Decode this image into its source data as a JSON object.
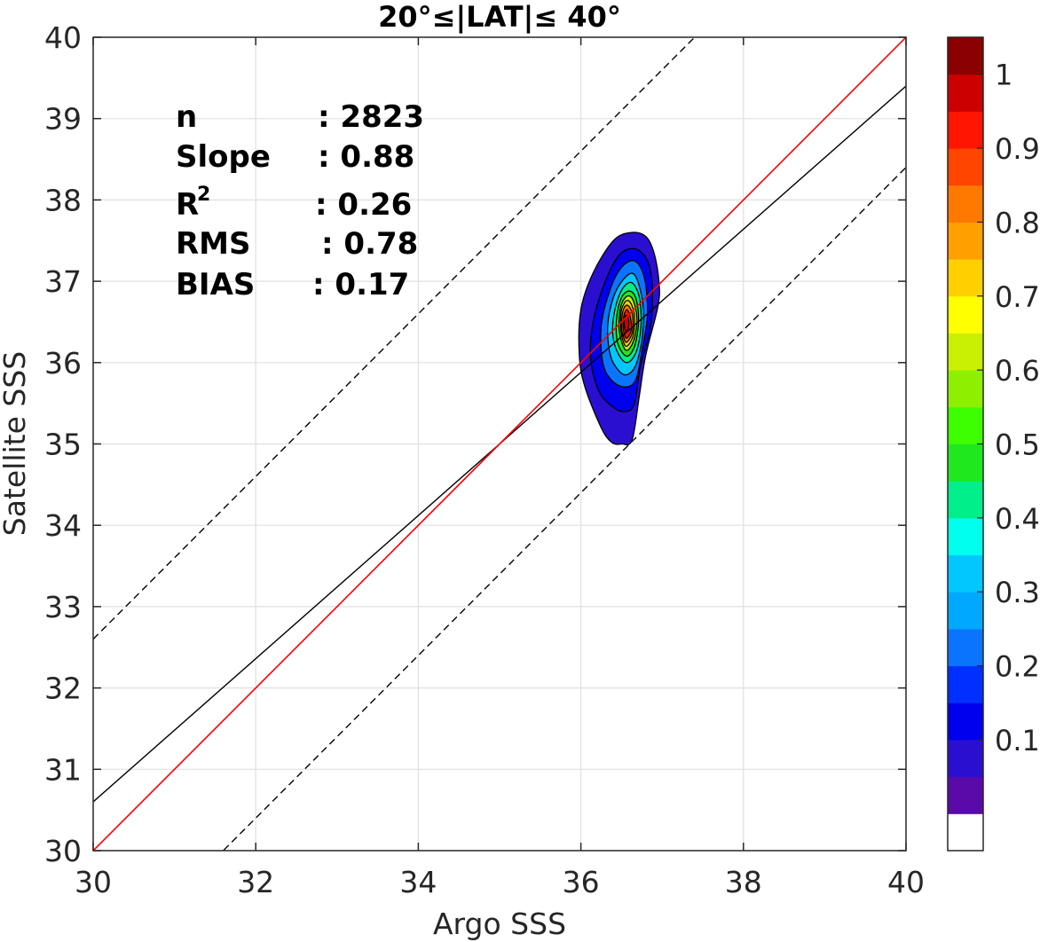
{
  "chart_data": {
    "type": "contour",
    "title": "20°≤|LAT|≤ 40°",
    "xlabel": "Argo SSS",
    "ylabel": "Satellite SSS",
    "xlim": [
      30,
      40
    ],
    "ylim": [
      30,
      40
    ],
    "xticks": [
      "30",
      "32",
      "34",
      "36",
      "38",
      "40"
    ],
    "yticks": [
      "30",
      "31",
      "32",
      "33",
      "34",
      "35",
      "36",
      "37",
      "38",
      "39",
      "40"
    ],
    "grid": true,
    "stats": [
      {
        "label": "n",
        "value": ": 2823"
      },
      {
        "label": "Slope",
        "value": ": 0.88"
      },
      {
        "label": "R",
        "sup": "2",
        "value": ": 0.26"
      },
      {
        "label": "RMS",
        "value": ": 0.78"
      },
      {
        "label": "BIAS",
        "value": ": 0.17"
      }
    ],
    "lines": {
      "one_to_one": {
        "slope": 1,
        "intercept": 0,
        "color": "#ff0000"
      },
      "regression": {
        "slope": 0.88,
        "x0": 30,
        "y0": 30.6,
        "color": "#000000"
      },
      "upper_bound": {
        "slope": 1,
        "intercept": 2.6,
        "color": "#000000",
        "dashed": true
      },
      "lower_bound": {
        "slope": 1,
        "intercept": -1.6,
        "color": "#000000",
        "dashed": true
      }
    },
    "contour_center": {
      "x": 36.55,
      "y": 36.5
    },
    "contours": [
      {
        "level": 0.05,
        "color": "#2b0fd0",
        "points": [
          [
            36.5,
            35.0
          ],
          [
            36.63,
            35.05
          ],
          [
            36.72,
            35.6
          ],
          [
            36.8,
            36.1
          ],
          [
            36.95,
            36.7
          ],
          [
            36.96,
            37.0
          ],
          [
            36.9,
            37.35
          ],
          [
            36.8,
            37.55
          ],
          [
            36.62,
            37.6
          ],
          [
            36.4,
            37.5
          ],
          [
            36.15,
            37.1
          ],
          [
            36.0,
            36.65
          ],
          [
            35.98,
            36.1
          ],
          [
            36.05,
            35.7
          ],
          [
            36.25,
            35.2
          ],
          [
            36.38,
            35.02
          ]
        ]
      },
      {
        "level": 0.1,
        "color": "#0000ee",
        "points": [
          [
            36.55,
            35.4
          ],
          [
            36.66,
            35.5
          ],
          [
            36.73,
            35.95
          ],
          [
            36.85,
            36.4
          ],
          [
            36.88,
            36.9
          ],
          [
            36.82,
            37.25
          ],
          [
            36.66,
            37.4
          ],
          [
            36.47,
            37.32
          ],
          [
            36.3,
            37.0
          ],
          [
            36.15,
            36.5
          ],
          [
            36.12,
            36.05
          ],
          [
            36.22,
            35.65
          ],
          [
            36.4,
            35.45
          ]
        ]
      },
      {
        "level": 0.2,
        "color": "#0b74ff",
        "points": [
          [
            36.55,
            35.7
          ],
          [
            36.68,
            35.8
          ],
          [
            36.76,
            36.2
          ],
          [
            36.82,
            36.6
          ],
          [
            36.78,
            37.05
          ],
          [
            36.66,
            37.25
          ],
          [
            36.5,
            37.17
          ],
          [
            36.36,
            36.9
          ],
          [
            36.25,
            36.45
          ],
          [
            36.27,
            36.0
          ],
          [
            36.38,
            35.78
          ]
        ]
      },
      {
        "level": 0.3,
        "color": "#00c8ff",
        "points": [
          [
            36.56,
            35.85
          ],
          [
            36.68,
            35.98
          ],
          [
            36.76,
            36.35
          ],
          [
            36.76,
            36.75
          ],
          [
            36.66,
            37.08
          ],
          [
            36.53,
            37.03
          ],
          [
            36.4,
            36.8
          ],
          [
            36.33,
            36.45
          ],
          [
            36.36,
            36.1
          ],
          [
            36.45,
            35.92
          ]
        ]
      },
      {
        "level": 0.4,
        "color": "#00ef8a",
        "points": [
          [
            36.56,
            36.0
          ],
          [
            36.68,
            36.13
          ],
          [
            36.74,
            36.45
          ],
          [
            36.72,
            36.8
          ],
          [
            36.63,
            36.98
          ],
          [
            36.52,
            36.92
          ],
          [
            36.43,
            36.7
          ],
          [
            36.39,
            36.4
          ],
          [
            36.44,
            36.15
          ]
        ]
      },
      {
        "level": 0.5,
        "color": "#1fe81f",
        "points": [
          [
            36.56,
            36.08
          ],
          [
            36.66,
            36.2
          ],
          [
            36.71,
            36.5
          ],
          [
            36.68,
            36.78
          ],
          [
            36.6,
            36.88
          ],
          [
            36.5,
            36.8
          ],
          [
            36.44,
            36.55
          ],
          [
            36.45,
            36.25
          ]
        ]
      },
      {
        "level": 0.6,
        "color": "#c8f000",
        "points": [
          [
            36.56,
            36.15
          ],
          [
            36.65,
            36.27
          ],
          [
            36.69,
            36.52
          ],
          [
            36.65,
            36.75
          ],
          [
            36.58,
            36.82
          ],
          [
            36.5,
            36.72
          ],
          [
            36.47,
            36.5
          ],
          [
            36.49,
            36.3
          ]
        ]
      },
      {
        "level": 0.7,
        "color": "#ffd000",
        "points": [
          [
            36.56,
            36.2
          ],
          [
            36.64,
            36.32
          ],
          [
            36.66,
            36.55
          ],
          [
            36.62,
            36.72
          ],
          [
            36.56,
            36.76
          ],
          [
            36.5,
            36.65
          ],
          [
            36.49,
            36.45
          ],
          [
            36.51,
            36.3
          ]
        ]
      },
      {
        "level": 0.8,
        "color": "#ff7800",
        "points": [
          [
            36.56,
            36.25
          ],
          [
            36.63,
            36.36
          ],
          [
            36.64,
            36.56
          ],
          [
            36.6,
            36.68
          ],
          [
            36.55,
            36.7
          ],
          [
            36.51,
            36.6
          ],
          [
            36.5,
            36.42
          ],
          [
            36.52,
            36.33
          ]
        ]
      },
      {
        "level": 0.9,
        "color": "#ff1500",
        "points": [
          [
            36.56,
            36.3
          ],
          [
            36.62,
            36.4
          ],
          [
            36.61,
            36.55
          ],
          [
            36.57,
            36.65
          ],
          [
            36.53,
            36.58
          ],
          [
            36.52,
            36.42
          ]
        ]
      },
      {
        "level": 0.95,
        "color": "#cc0000",
        "points": [
          [
            36.56,
            36.38
          ],
          [
            36.59,
            36.45
          ],
          [
            36.58,
            36.55
          ],
          [
            36.55,
            36.58
          ],
          [
            36.53,
            36.5
          ],
          [
            36.54,
            36.42
          ]
        ]
      }
    ],
    "colorbar": {
      "ticks": [
        "0.1",
        "0.2",
        "0.3",
        "0.4",
        "0.5",
        "0.6",
        "0.7",
        "0.8",
        "0.9",
        "1"
      ],
      "colors": [
        "#ffffff",
        "#5a0aa8",
        "#2b0fd0",
        "#0000ee",
        "#0030ff",
        "#0b74ff",
        "#00a8ff",
        "#00c8ff",
        "#00ffee",
        "#00ef8a",
        "#1fe81f",
        "#3cff00",
        "#8ef000",
        "#c8f000",
        "#ffff00",
        "#ffd000",
        "#ffa000",
        "#ff7800",
        "#ff4500",
        "#ff1500",
        "#cc0000",
        "#8b0000"
      ]
    }
  }
}
